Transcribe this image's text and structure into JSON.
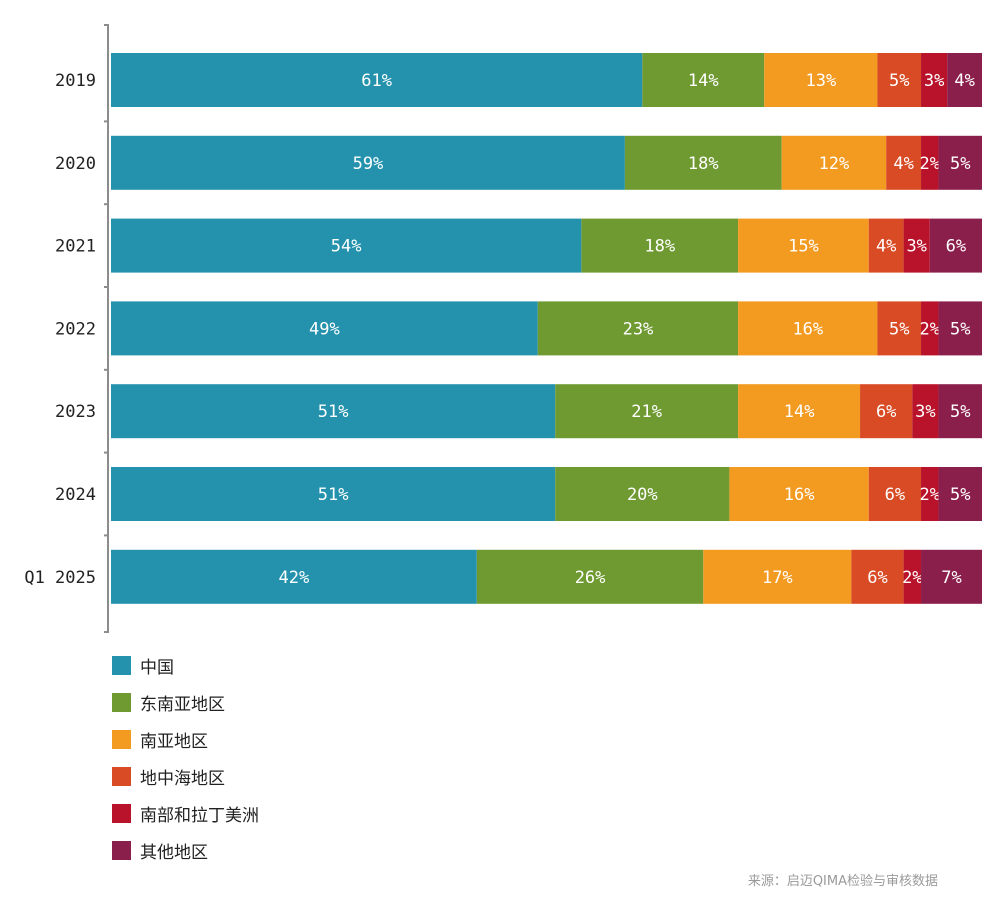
{
  "chart_data": {
    "type": "bar",
    "orientation": "horizontal",
    "stacked": true,
    "normalized_percent": true,
    "categories": [
      "2019",
      "2020",
      "2021",
      "2022",
      "2023",
      "2024",
      "Q1 2025"
    ],
    "series": [
      {
        "name": "中国",
        "color": "#2492ad",
        "values": [
          61,
          59,
          54,
          49,
          51,
          51,
          42
        ]
      },
      {
        "name": "东南亚地区",
        "color": "#6f9a32",
        "values": [
          14,
          18,
          18,
          23,
          21,
          20,
          26
        ]
      },
      {
        "name": "南亚地区",
        "color": "#f39a21",
        "values": [
          13,
          12,
          15,
          16,
          14,
          16,
          17
        ]
      },
      {
        "name": "地中海地区",
        "color": "#d84b24",
        "values": [
          5,
          4,
          4,
          5,
          6,
          6,
          6
        ]
      },
      {
        "name": "南部和拉丁美洲",
        "color": "#b8132a",
        "values": [
          3,
          2,
          3,
          2,
          3,
          2,
          2
        ]
      },
      {
        "name": "其他地区",
        "color": "#8a1f4b",
        "values": [
          4,
          5,
          6,
          5,
          5,
          5,
          7
        ]
      }
    ],
    "value_suffix": "%",
    "xlim": [
      0,
      100
    ],
    "grid": false,
    "legend_position": "bottom-left"
  },
  "source": "来源：启迈QIMA检验与审核数据"
}
